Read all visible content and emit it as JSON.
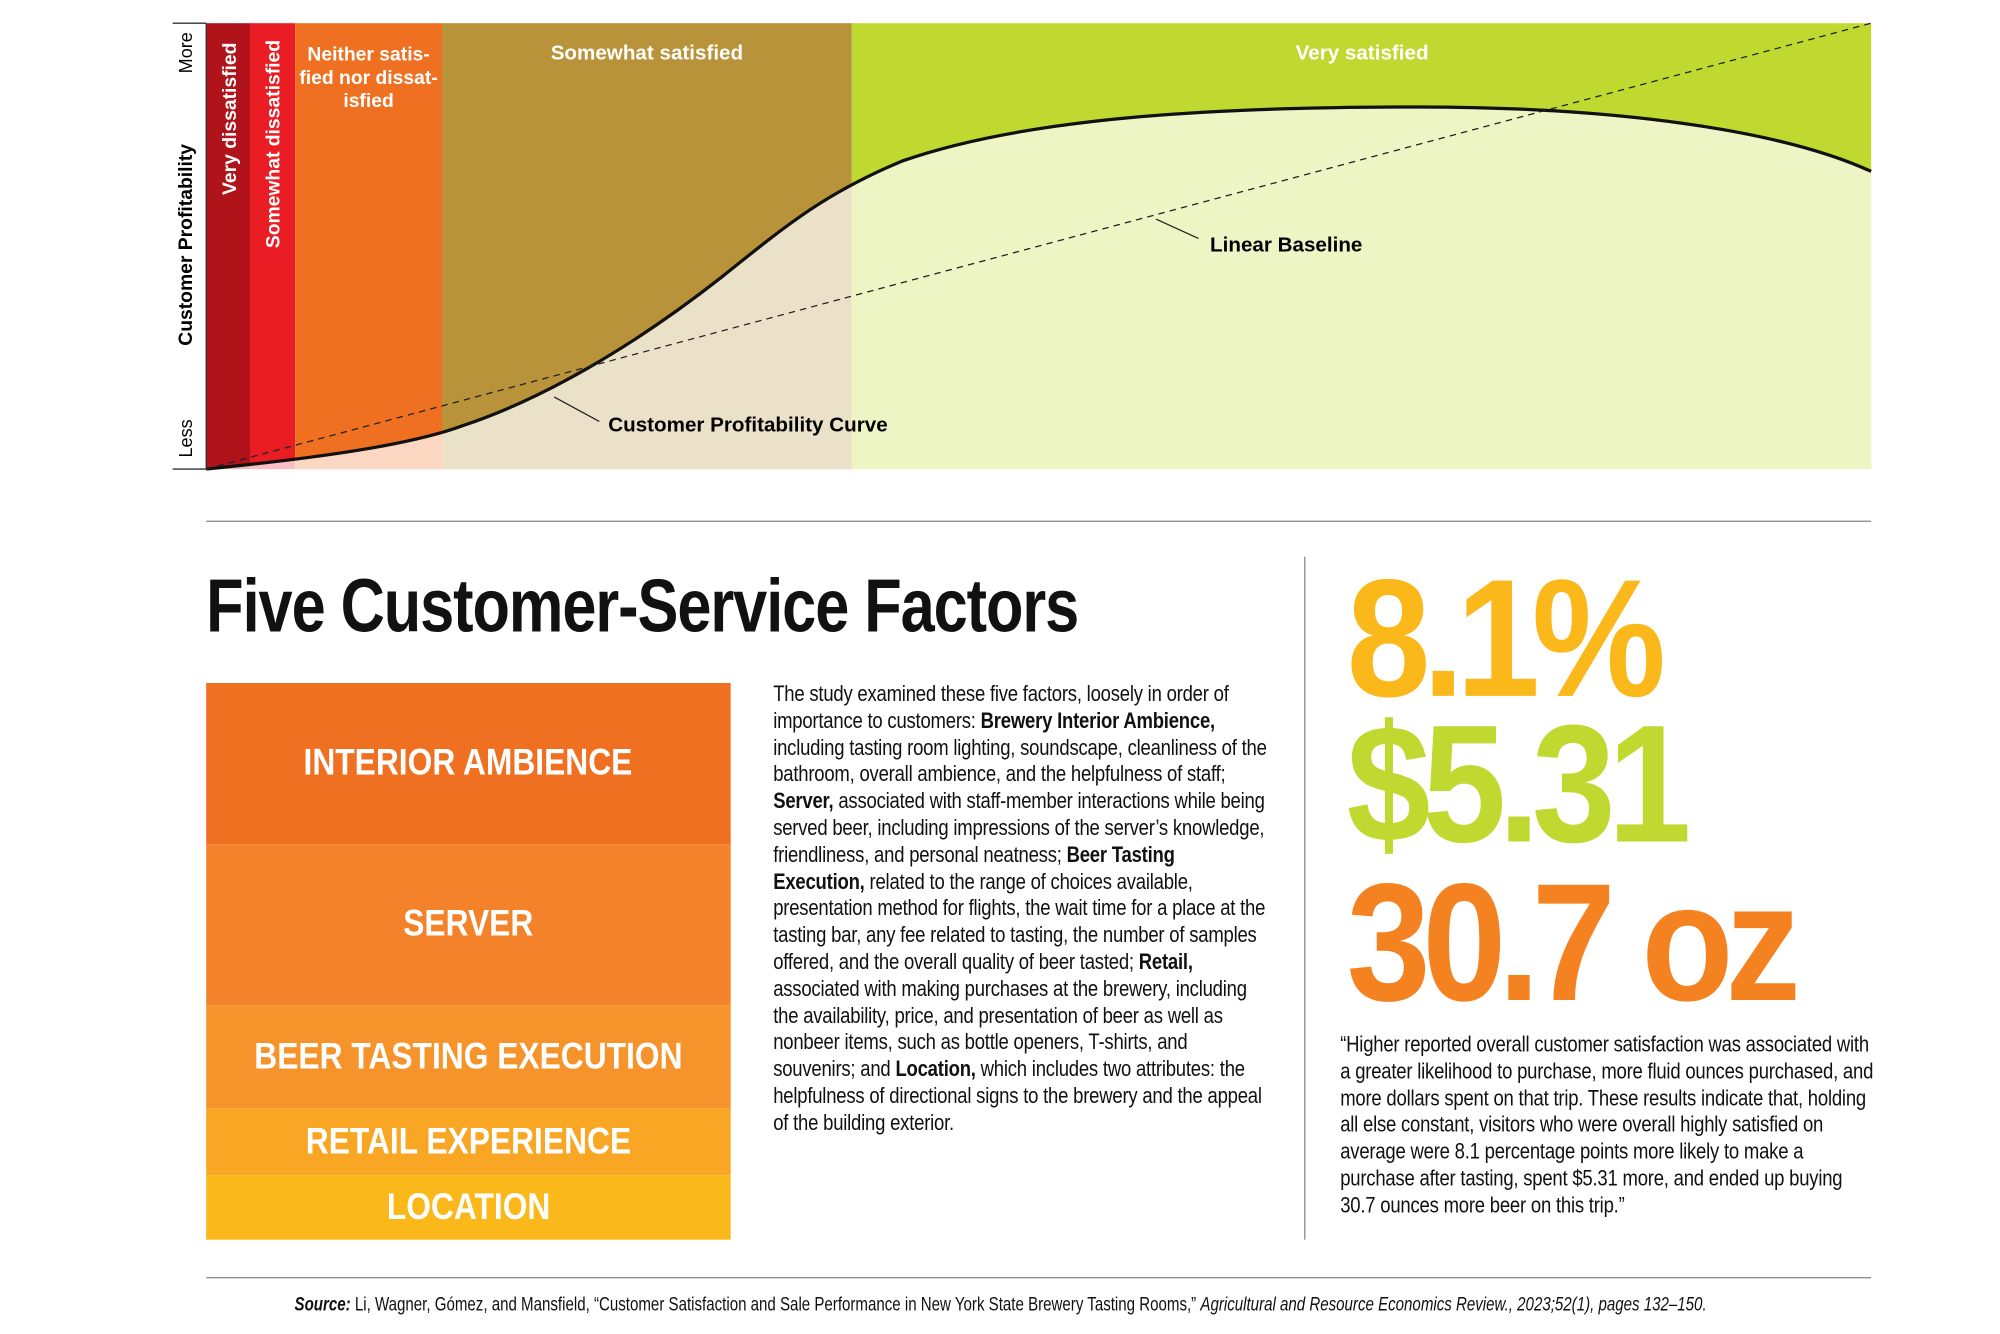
{
  "profitability_chart": {
    "y_axis_label": "Customer Profitability",
    "y_axis_top": "More",
    "y_axis_bottom": "Less",
    "zones": [
      "Very dissatisfied",
      "Somewhat dissatisfied",
      [
        "Neither satis-",
        "fied nor dissat-",
        "isfied"
      ],
      "Somewhat satisfied",
      "Very satisfied"
    ],
    "baseline_label": "Linear Baseline",
    "curve_label": "Customer Profitability Curve"
  },
  "factors": {
    "title": "Five Customer-Service Factors",
    "items": [
      "INTERIOR AMBIENCE",
      "SERVER",
      "BEER TASTING EXECUTION",
      "RETAIL EXPERIENCE",
      "LOCATION"
    ],
    "description": [
      {
        "text": "The study examined these five factors, loosely in order of importance to customers: ",
        "bold": false
      },
      {
        "text": "Brewery Interior Ambience,",
        "bold": true
      },
      {
        "text": " including tasting room lighting, soundscape, cleanliness of the bathroom, overall ambience, and the helpfulness of staff; ",
        "bold": false
      },
      {
        "text": "Server,",
        "bold": true
      },
      {
        "text": " associated with staff-member interactions while being served beer, including impressions of the server’s knowledge, friendliness, and personal neatness; ",
        "bold": false
      },
      {
        "text": "Beer Tasting Execution,",
        "bold": true
      },
      {
        "text": " related to the range of choices available, presentation method for flights, the wait time for a place at the tasting bar, any fee related to tasting, the number of samples offered, and the overall quality of beer tasted; ",
        "bold": false
      },
      {
        "text": "Retail,",
        "bold": true
      },
      {
        "text": " associated with making purchases at the brewery, including the availability, price, and presentation of beer as well as nonbeer items, such as bottle openers, T-shirts, and souvenirs; and ",
        "bold": false
      },
      {
        "text": "Location,",
        "bold": true
      },
      {
        "text": " which includes two attributes: the helpfulness of directional signs to the brewery and the appeal of the building exterior.",
        "bold": false
      }
    ]
  },
  "stats": {
    "figures": [
      "8.1%",
      "$5.31",
      "30.7 oz"
    ],
    "quote": "“Higher reported overall customer satisfaction was associated with a greater likelihood to purchase, more fluid ounces purchased, and more dollars spent on that trip. These results indicate that, holding all else constant, visitors who were overall highly satisfied on average were 8.1 percentage points more likely to make a purchase after tasting, spent $5.31 more, and ended up buying 30.7 ounces more beer on this trip.”"
  },
  "source": [
    {
      "text": "Source:",
      "style": "bold-italic"
    },
    {
      "text": " Li, Wagner, Gómez, and Mansfield, “Customer Satisfaction and Sale Performance in New York State Brewery Tasting Rooms,” ",
      "style": "normal"
    },
    {
      "text": "Agricultural and Resource Economics Review., 2023;52(1), pages 132–150.",
      "style": "italic"
    }
  ]
}
